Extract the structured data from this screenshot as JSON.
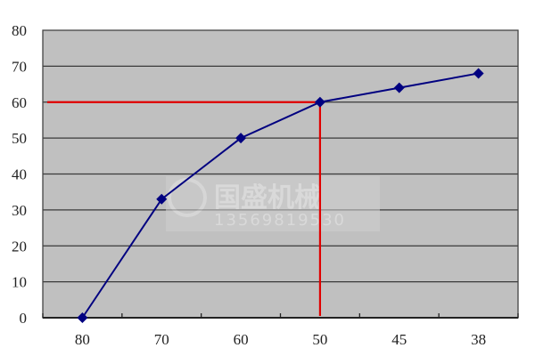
{
  "chart_data": {
    "type": "line",
    "title": "",
    "xlabel": "",
    "ylabel": "",
    "categories": [
      "80",
      "70",
      "60",
      "50",
      "45",
      "38"
    ],
    "series": [
      {
        "values": [
          0,
          33,
          50,
          60,
          64,
          68
        ],
        "color": "#000080",
        "marker": "diamond"
      }
    ],
    "ylim": [
      0,
      80
    ],
    "yticks": [
      "0",
      "10",
      "20",
      "30",
      "40",
      "50",
      "60",
      "70",
      "80"
    ],
    "grid": "horizontal",
    "background": "#c0c0c0",
    "reference_lines": {
      "y": 60,
      "x_category": "50",
      "color": "#e00000"
    },
    "watermark": {
      "brand": "国盛机械",
      "phone": "13569819530"
    }
  }
}
